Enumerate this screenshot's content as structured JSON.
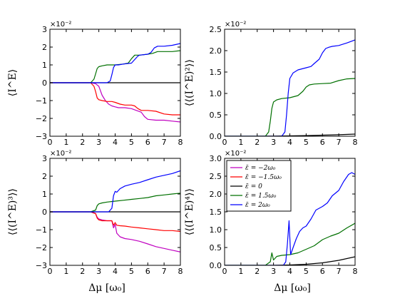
{
  "figure": {
    "xlabel": "Δμ  [ω₀]"
  },
  "legend": {
    "panel_index": 3,
    "entries": [
      {
        "label": "ε̄ = −2ω₀",
        "color": "#c000c0"
      },
      {
        "label": "ε̄ = −1.5ω₀",
        "color": "#ff0000"
      },
      {
        "label": "ε̄ = 0",
        "color": "#000000"
      },
      {
        "label": "ε̄ = 1.5ω₀",
        "color": "#007000"
      },
      {
        "label": "ε̄ = 2ω₀",
        "color": "#0000ff"
      }
    ]
  },
  "chart_data": [
    {
      "type": "line",
      "ylabel": "⟨I^E⟩",
      "sci_label": "×10⁻²",
      "xlim": [
        0,
        8
      ],
      "ylim": [
        -3,
        3
      ],
      "xticks": [
        "0",
        "1",
        "2",
        "3",
        "4",
        "5",
        "6",
        "7",
        "8"
      ],
      "yticks": [
        "−3",
        "−2",
        "−1",
        "0",
        "1",
        "2",
        "3"
      ],
      "ytick_values": [
        -3,
        -2,
        -1,
        0,
        1,
        2,
        3
      ],
      "series": [
        {
          "color": "#c000c0",
          "x": [
            0,
            2.5,
            2.8,
            3.0,
            3.2,
            3.4,
            3.6,
            3.8,
            4.0,
            4.2,
            4.6,
            5.0,
            5.3,
            5.6,
            5.8,
            6.0,
            6.5,
            7.0,
            7.5,
            8.0
          ],
          "y": [
            0,
            0,
            -0.05,
            -0.2,
            -0.7,
            -1.0,
            -1.2,
            -1.3,
            -1.35,
            -1.4,
            -1.4,
            -1.45,
            -1.55,
            -1.65,
            -1.9,
            -2.05,
            -2.1,
            -2.1,
            -2.15,
            -2.2
          ]
        },
        {
          "color": "#ff0000",
          "x": [
            0,
            2.5,
            2.7,
            2.8,
            2.9,
            3.0,
            3.2,
            3.5,
            3.8,
            4.0,
            4.3,
            4.6,
            5.0,
            5.2,
            5.4,
            5.6,
            6.0,
            6.5,
            7.0,
            7.5,
            8.0
          ],
          "y": [
            0,
            0,
            -0.2,
            -0.5,
            -0.85,
            -0.95,
            -1.0,
            -1.05,
            -1.05,
            -1.1,
            -1.2,
            -1.25,
            -1.25,
            -1.3,
            -1.45,
            -1.55,
            -1.55,
            -1.6,
            -1.75,
            -1.8,
            -1.8
          ]
        },
        {
          "color": "#000000",
          "x": [
            0,
            8
          ],
          "y": [
            0,
            0
          ]
        },
        {
          "color": "#007000",
          "x": [
            0,
            2.5,
            2.7,
            2.8,
            2.9,
            3.0,
            3.2,
            3.5,
            4.0,
            4.5,
            4.8,
            5.0,
            5.2,
            5.5,
            6.0,
            6.3,
            6.6,
            7.0,
            7.5,
            8.0
          ],
          "y": [
            0,
            0,
            0.2,
            0.5,
            0.8,
            0.9,
            0.95,
            1.0,
            1.0,
            1.05,
            1.1,
            1.35,
            1.55,
            1.55,
            1.6,
            1.65,
            1.75,
            1.75,
            1.75,
            1.8
          ]
        },
        {
          "color": "#0000ff",
          "x": [
            0,
            3.5,
            3.7,
            3.8,
            3.9,
            4.0,
            4.2,
            4.5,
            5.0,
            5.2,
            5.4,
            5.5,
            6.0,
            6.2,
            6.4,
            6.6,
            7.0,
            7.5,
            8.0
          ],
          "y": [
            0,
            0,
            0.1,
            0.45,
            0.85,
            1.0,
            1.0,
            1.05,
            1.1,
            1.3,
            1.5,
            1.55,
            1.6,
            1.7,
            1.95,
            2.05,
            2.05,
            2.1,
            2.2
          ]
        }
      ]
    },
    {
      "type": "line",
      "ylabel": "⟨⟨(I^E)²⟩⟩",
      "sci_label": "×10⁻²",
      "xlim": [
        0,
        8
      ],
      "ylim": [
        0,
        2.5
      ],
      "xticks": [
        "0",
        "1",
        "2",
        "3",
        "4",
        "5",
        "6",
        "7",
        "8"
      ],
      "yticks": [
        "0.0",
        "0.5",
        "1.0",
        "1.5",
        "2.0",
        "2.5"
      ],
      "ytick_values": [
        0,
        0.5,
        1.0,
        1.5,
        2.0,
        2.5
      ],
      "series": [
        {
          "color": "#000000",
          "x": [
            0,
            2,
            3,
            4,
            5,
            6,
            7,
            8
          ],
          "y": [
            0,
            0,
            0.002,
            0.008,
            0.015,
            0.025,
            0.035,
            0.05
          ]
        },
        {
          "color": "#007000",
          "x": [
            0,
            2.5,
            2.7,
            2.8,
            2.9,
            3.0,
            3.2,
            3.5,
            4.0,
            4.5,
            4.8,
            5.0,
            5.2,
            5.5,
            6.0,
            6.5,
            7.0,
            7.5,
            8.0
          ],
          "y": [
            0,
            0,
            0.1,
            0.35,
            0.65,
            0.8,
            0.85,
            0.88,
            0.9,
            0.95,
            1.05,
            1.15,
            1.2,
            1.22,
            1.23,
            1.24,
            1.3,
            1.34,
            1.35
          ]
        },
        {
          "color": "#0000ff",
          "x": [
            0,
            3.5,
            3.7,
            3.8,
            3.9,
            4.0,
            4.2,
            4.5,
            5.0,
            5.3,
            5.5,
            5.8,
            6.0,
            6.2,
            6.4,
            6.6,
            7.0,
            7.5,
            8.0
          ],
          "y": [
            0,
            0,
            0.1,
            0.5,
            1.0,
            1.35,
            1.48,
            1.55,
            1.6,
            1.63,
            1.7,
            1.8,
            1.95,
            2.05,
            2.08,
            2.1,
            2.12,
            2.18,
            2.25
          ]
        }
      ]
    },
    {
      "type": "line",
      "ylabel": "⟨⟨(I^E)³⟩⟩",
      "sci_label": "×10⁻²",
      "xlim": [
        0,
        8
      ],
      "ylim": [
        -3,
        3
      ],
      "xticks": [
        "0",
        "1",
        "2",
        "3",
        "4",
        "5",
        "6",
        "7",
        "8"
      ],
      "yticks": [
        "−3",
        "−2",
        "−1",
        "0",
        "1",
        "2",
        "3"
      ],
      "ytick_values": [
        -3,
        -2,
        -1,
        0,
        1,
        2,
        3
      ],
      "series": [
        {
          "color": "#c000c0",
          "x": [
            0,
            2.5,
            2.8,
            2.9,
            3.0,
            3.2,
            3.5,
            3.8,
            3.9,
            4.0,
            4.1,
            4.3,
            4.6,
            5.0,
            5.5,
            6.0,
            6.5,
            7.0,
            7.5,
            8.0
          ],
          "y": [
            0,
            0,
            -0.1,
            -0.3,
            -0.4,
            -0.45,
            -0.5,
            -0.5,
            -0.9,
            -0.7,
            -1.2,
            -1.4,
            -1.5,
            -1.55,
            -1.65,
            -1.8,
            -1.95,
            -2.05,
            -2.15,
            -2.25
          ]
        },
        {
          "color": "#ff0000",
          "x": [
            0,
            2.5,
            2.8,
            2.9,
            3.0,
            3.2,
            3.5,
            3.8,
            3.9,
            4.0,
            4.1,
            4.3,
            4.6,
            5.0,
            5.5,
            6.0,
            6.5,
            7.0,
            7.5,
            8.0
          ],
          "y": [
            0,
            0,
            -0.1,
            -0.35,
            -0.45,
            -0.5,
            -0.5,
            -0.5,
            -0.75,
            -0.6,
            -0.75,
            -0.78,
            -0.8,
            -0.85,
            -0.9,
            -0.95,
            -1.0,
            -1.05,
            -1.05,
            -1.1
          ]
        },
        {
          "color": "#000000",
          "x": [
            0,
            8
          ],
          "y": [
            0,
            0
          ]
        },
        {
          "color": "#007000",
          "x": [
            0,
            2.5,
            2.8,
            2.9,
            3.0,
            3.2,
            3.5,
            4.0,
            4.5,
            5.0,
            5.5,
            6.0,
            6.5,
            7.0,
            7.5,
            8.0
          ],
          "y": [
            0,
            0,
            0.1,
            0.35,
            0.45,
            0.5,
            0.55,
            0.6,
            0.65,
            0.7,
            0.75,
            0.8,
            0.9,
            0.95,
            1.0,
            1.05
          ]
        },
        {
          "color": "#0000ff",
          "x": [
            0,
            3.6,
            3.8,
            3.9,
            4.0,
            4.1,
            4.3,
            4.6,
            5.0,
            5.5,
            6.0,
            6.5,
            7.0,
            7.5,
            8.0
          ],
          "y": [
            0,
            0,
            0.2,
            0.9,
            1.15,
            1.1,
            1.3,
            1.45,
            1.55,
            1.65,
            1.8,
            1.95,
            2.05,
            2.15,
            2.3
          ]
        }
      ]
    },
    {
      "type": "line",
      "ylabel": "⟨⟨(I^E)⁴⟩⟩",
      "sci_label": "×10⁻²",
      "xlim": [
        0,
        8
      ],
      "ylim": [
        0,
        3.0
      ],
      "xticks": [
        "0",
        "1",
        "2",
        "3",
        "4",
        "5",
        "6",
        "7",
        "8"
      ],
      "yticks": [
        "0.0",
        "0.5",
        "1.0",
        "1.5",
        "2.0",
        "2.5",
        "3.0"
      ],
      "ytick_values": [
        0,
        0.5,
        1.0,
        1.5,
        2.0,
        2.5,
        3.0
      ],
      "series": [
        {
          "color": "#000000",
          "x": [
            0,
            3,
            4,
            5,
            6,
            7,
            8
          ],
          "y": [
            0,
            0,
            0.01,
            0.03,
            0.07,
            0.14,
            0.24
          ]
        },
        {
          "color": "#007000",
          "x": [
            0,
            2.5,
            2.8,
            2.9,
            3.0,
            3.1,
            3.2,
            3.5,
            4.0,
            4.5,
            5.0,
            5.5,
            6.0,
            6.5,
            7.0,
            7.5,
            8.0
          ],
          "y": [
            0,
            0,
            0.1,
            0.35,
            0.15,
            0.2,
            0.25,
            0.28,
            0.3,
            0.35,
            0.45,
            0.55,
            0.72,
            0.82,
            0.9,
            1.05,
            1.18
          ]
        },
        {
          "color": "#0000ff",
          "x": [
            0,
            3.6,
            3.75,
            3.85,
            3.95,
            4.05,
            4.2,
            4.4,
            4.6,
            4.8,
            5.0,
            5.3,
            5.6,
            6.0,
            6.3,
            6.6,
            7.0,
            7.3,
            7.6,
            7.8,
            8.0
          ],
          "y": [
            0,
            0,
            0.1,
            0.6,
            1.25,
            0.3,
            0.5,
            0.75,
            0.95,
            1.05,
            1.1,
            1.3,
            1.55,
            1.65,
            1.75,
            1.95,
            2.1,
            2.35,
            2.55,
            2.6,
            2.55
          ]
        }
      ]
    }
  ]
}
